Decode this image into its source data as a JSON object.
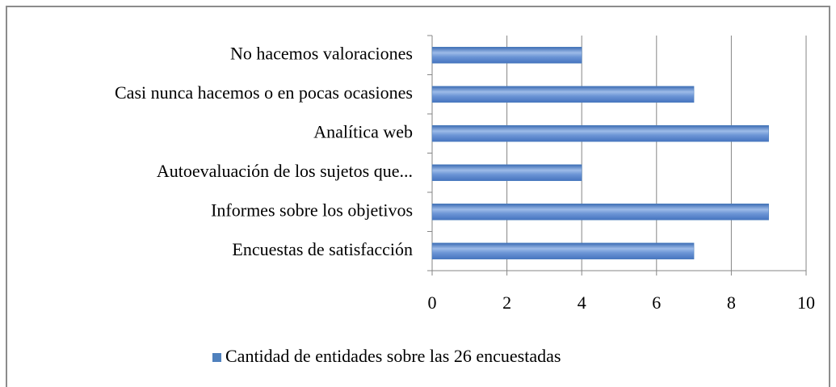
{
  "chart_data": {
    "type": "hbar",
    "categories": [
      "No hacemos valoraciones",
      "Casi nunca hacemos o en pocas ocasiones",
      "Analítica web",
      "Autoevaluación de los sujetos que...",
      "Informes sobre los objetivos",
      "Encuestas de satisfacción"
    ],
    "series": [
      {
        "name": "Cantidad de entidades sobre las 26 encuestadas",
        "color": "#4f81bd",
        "values": [
          4,
          7,
          9,
          4,
          9,
          7
        ]
      }
    ],
    "xlim": [
      0,
      10
    ],
    "xticks": [
      0,
      2,
      4,
      6,
      8,
      10
    ],
    "grid": true,
    "legend": "bottom"
  }
}
